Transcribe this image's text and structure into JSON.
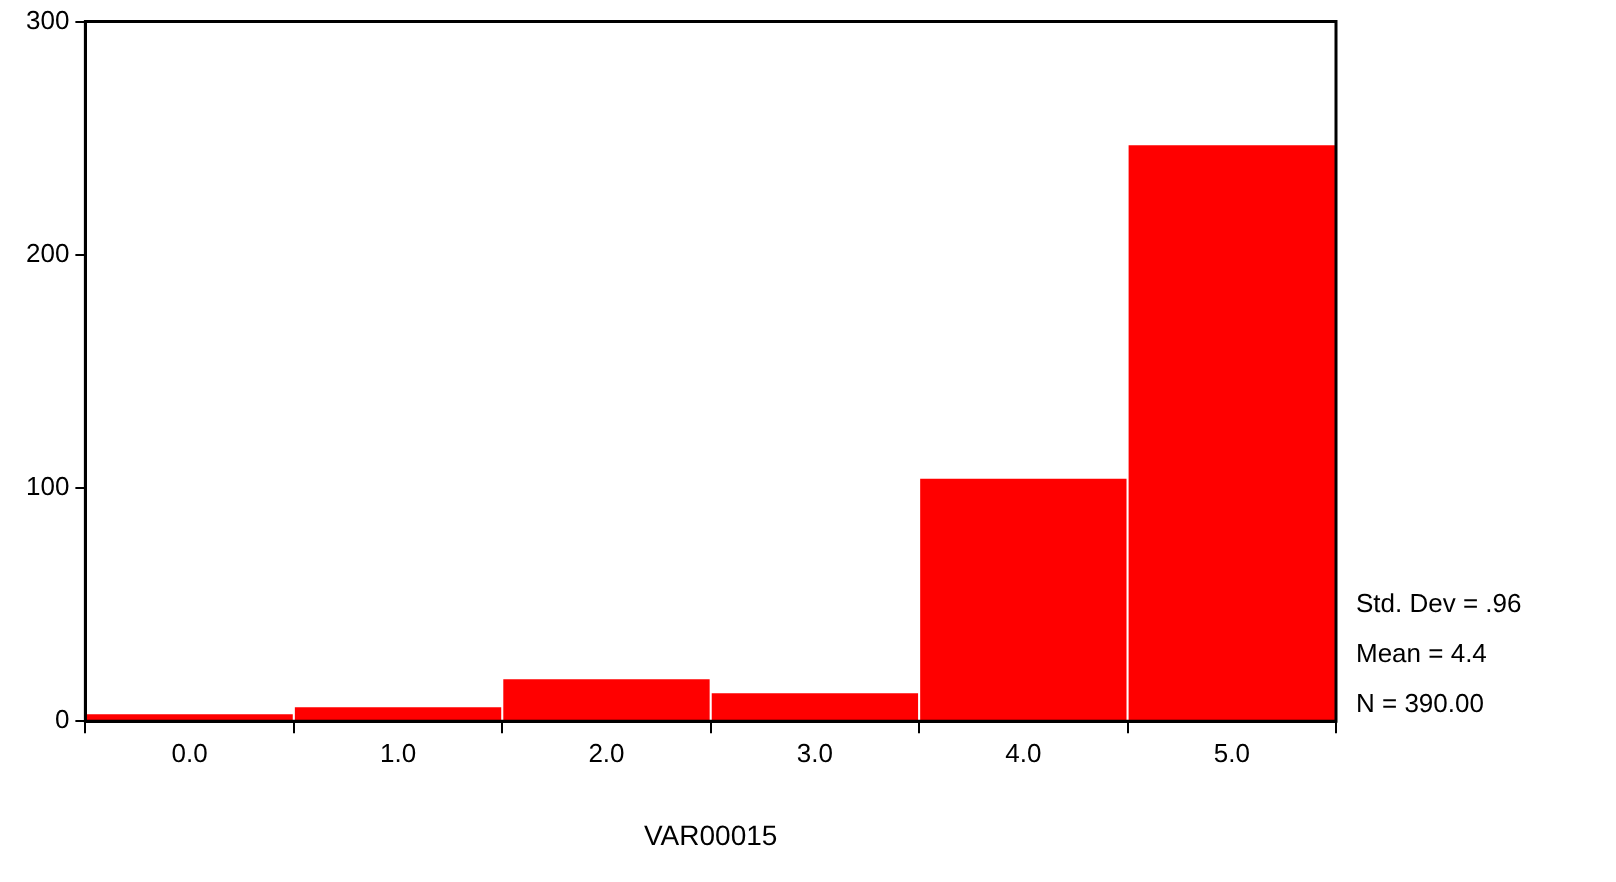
{
  "chart_data": {
    "type": "histogram",
    "xlabel": "VAR00015",
    "bins": [
      -0.5,
      0.5,
      1.5,
      2.5,
      3.5,
      4.5,
      5.5
    ],
    "values": [
      3,
      6,
      18,
      12,
      104,
      247
    ],
    "color": "#ff0000",
    "xlim": [
      -0.5,
      5.5
    ],
    "xticks": [
      {
        "value": 0,
        "label": "0.0"
      },
      {
        "value": 1,
        "label": "1.0"
      },
      {
        "value": 2,
        "label": "2.0"
      },
      {
        "value": 3,
        "label": "3.0"
      },
      {
        "value": 4,
        "label": "4.0"
      },
      {
        "value": 5,
        "label": "5.0"
      }
    ],
    "ylim": [
      0,
      300
    ],
    "yticks": [
      0,
      100,
      200,
      300
    ],
    "grid": false,
    "legend": false,
    "annotations": [
      "Std. Dev = .96",
      "Mean = 4.4",
      "N = 390.00"
    ]
  }
}
